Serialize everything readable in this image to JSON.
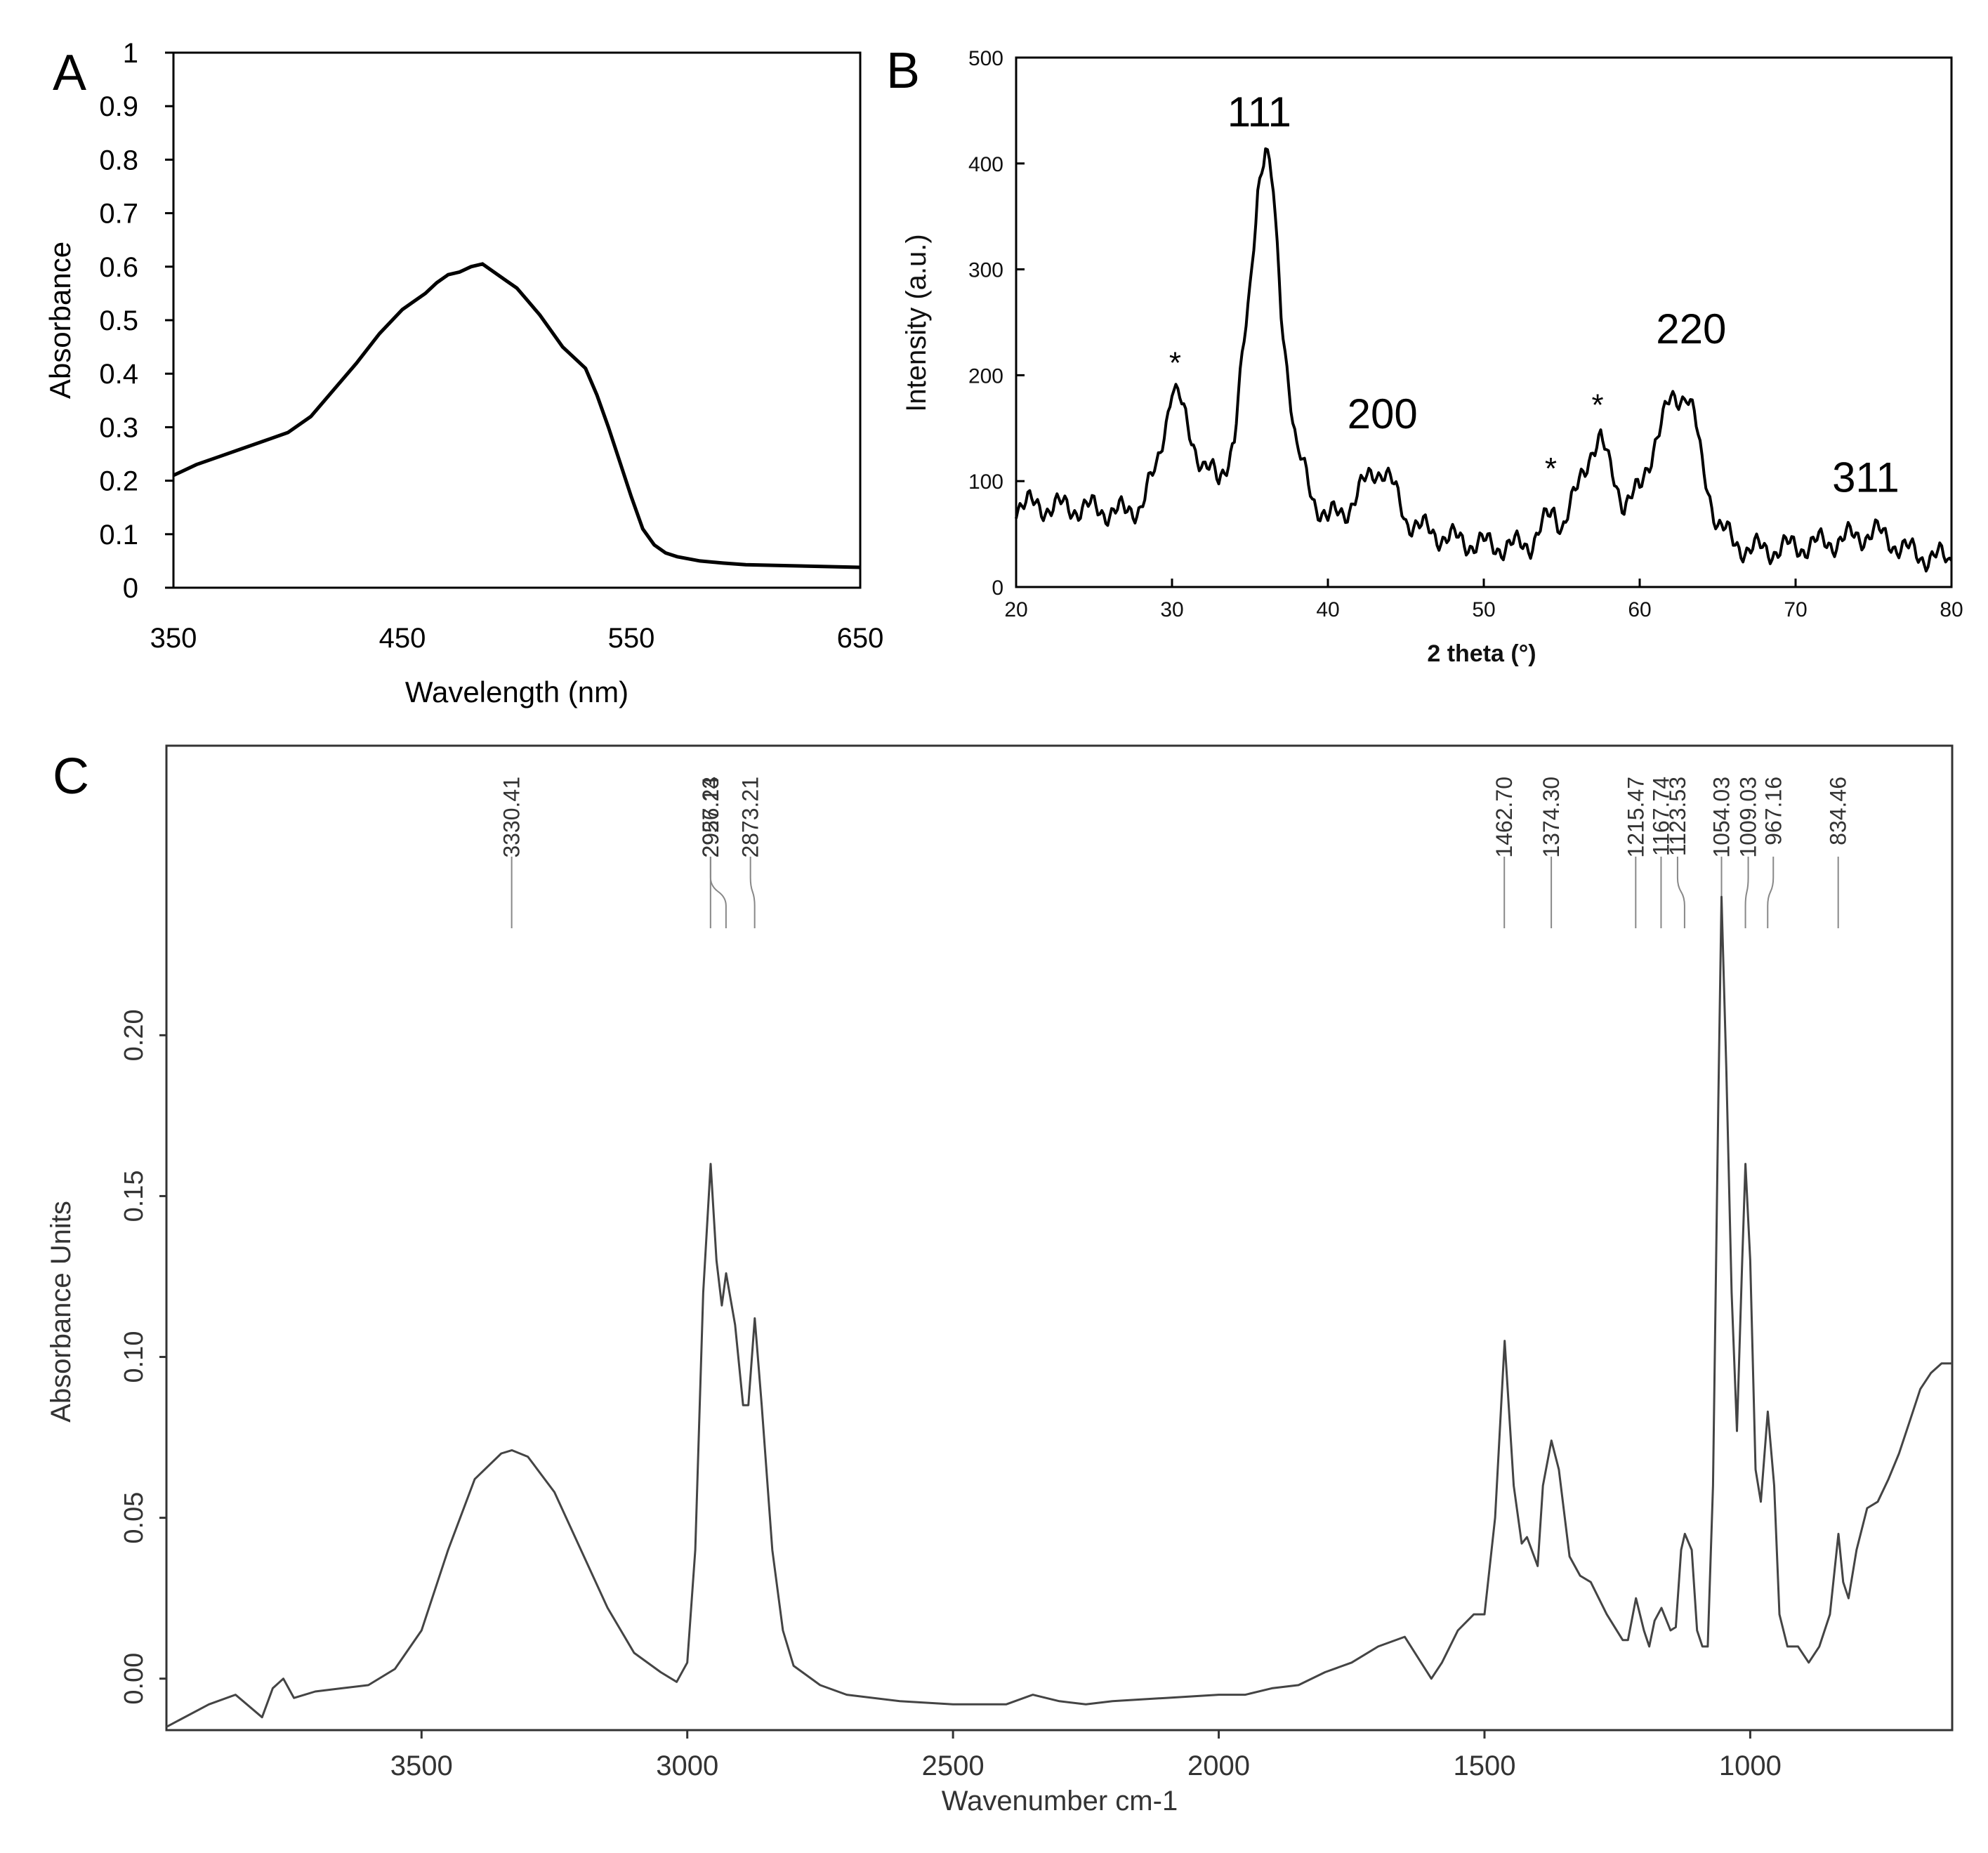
{
  "chart_data": [
    {
      "panel": "A",
      "type": "line",
      "panel_label": "A",
      "xlabel": "Wavelength (nm)",
      "ylabel": "Absorbance",
      "xlim": [
        350,
        650
      ],
      "ylim": [
        0,
        1
      ],
      "xticks": [
        "350",
        "450",
        "550",
        "650"
      ],
      "yticks": [
        "0",
        "0.1",
        "0.2",
        "0.3",
        "0.4",
        "0.5",
        "0.6",
        "0.7",
        "0.8",
        "0.9",
        "1"
      ],
      "x": [
        350,
        360,
        370,
        380,
        390,
        400,
        410,
        420,
        430,
        440,
        450,
        455,
        460,
        465,
        470,
        475,
        480,
        485,
        490,
        495,
        500,
        505,
        510,
        515,
        520,
        525,
        530,
        535,
        540,
        545,
        550,
        555,
        560,
        565,
        570,
        580,
        590,
        600,
        610,
        620,
        630,
        640,
        650
      ],
      "y": [
        0.21,
        0.23,
        0.245,
        0.26,
        0.275,
        0.29,
        0.32,
        0.37,
        0.42,
        0.475,
        0.52,
        0.535,
        0.55,
        0.57,
        0.585,
        0.59,
        0.6,
        0.605,
        0.59,
        0.575,
        0.56,
        0.535,
        0.51,
        0.48,
        0.45,
        0.43,
        0.41,
        0.36,
        0.3,
        0.235,
        0.17,
        0.11,
        0.08,
        0.065,
        0.058,
        0.05,
        0.046,
        0.043,
        0.042,
        0.041,
        0.04,
        0.039,
        0.038
      ]
    },
    {
      "panel": "B",
      "type": "line",
      "panel_label": "B",
      "xlabel": "2 theta (°)",
      "ylabel": "Intensity (a.u.)",
      "xlim": [
        20,
        80
      ],
      "ylim": [
        0,
        500
      ],
      "xticks": [
        "20",
        "30",
        "40",
        "50",
        "60",
        "70",
        "80"
      ],
      "yticks": [
        "0",
        "100",
        "200",
        "300",
        "400",
        "500"
      ],
      "x": [
        20,
        22,
        24,
        26,
        27,
        28,
        29,
        29.5,
        30,
        30.5,
        31,
        32,
        33,
        34,
        35,
        35.5,
        36,
        36.5,
        37,
        38,
        39,
        40,
        41,
        42,
        43,
        43.5,
        44,
        45,
        46,
        48,
        50,
        52,
        53,
        54,
        54.5,
        55,
        56,
        57,
        57.5,
        58,
        59,
        60,
        61,
        62,
        63,
        63.5,
        64,
        65,
        66,
        67,
        68,
        70,
        72,
        74,
        75,
        76,
        77,
        78,
        79,
        80
      ],
      "y": [
        78,
        76,
        75,
        72,
        70,
        78,
        110,
        150,
        190,
        175,
        150,
        115,
        100,
        140,
        280,
        380,
        415,
        370,
        260,
        130,
        85,
        65,
        70,
        90,
        110,
        112,
        100,
        65,
        55,
        45,
        40,
        38,
        42,
        62,
        70,
        60,
        90,
        135,
        140,
        115,
        80,
        90,
        140,
        175,
        185,
        160,
        115,
        60,
        42,
        36,
        35,
        38,
        42,
        48,
        52,
        45,
        35,
        30,
        28,
        25
      ],
      "annotations": [
        {
          "text": "111",
          "x": 35.6,
          "y": 435
        },
        {
          "text": "200",
          "x": 43.5,
          "y": 150
        },
        {
          "text": "220",
          "x": 63.3,
          "y": 230
        },
        {
          "text": "311",
          "x": 74.5,
          "y": 90
        },
        {
          "text": "*",
          "x": 30.2,
          "y": 210
        },
        {
          "text": "*",
          "x": 54.3,
          "y": 110
        },
        {
          "text": "*",
          "x": 57.3,
          "y": 170
        }
      ]
    },
    {
      "panel": "C",
      "type": "line",
      "panel_label": "C",
      "xlabel": "Wavenumber cm-1",
      "ylabel": "Absorbance Units",
      "xlim": [
        3980,
        620
      ],
      "ylim": [
        -0.016,
        0.29
      ],
      "xticks": [
        "3500",
        "3000",
        "2500",
        "2000",
        "1500",
        "1000"
      ],
      "yticks": [
        "0.00",
        "0.05",
        "0.10",
        "0.15",
        "0.20"
      ],
      "x": [
        3980,
        3900,
        3850,
        3800,
        3780,
        3760,
        3740,
        3700,
        3650,
        3600,
        3550,
        3500,
        3450,
        3400,
        3350,
        3330,
        3300,
        3250,
        3200,
        3150,
        3100,
        3050,
        3020,
        3000,
        2985,
        2970,
        2956,
        2945,
        2935,
        2927,
        2910,
        2895,
        2885,
        2873,
        2860,
        2840,
        2820,
        2800,
        2750,
        2700,
        2600,
        2500,
        2400,
        2350,
        2300,
        2250,
        2200,
        2100,
        2000,
        1950,
        1900,
        1850,
        1800,
        1750,
        1700,
        1650,
        1600,
        1580,
        1550,
        1520,
        1500,
        1480,
        1462,
        1445,
        1430,
        1420,
        1400,
        1390,
        1374,
        1360,
        1340,
        1320,
        1300,
        1270,
        1240,
        1230,
        1215,
        1200,
        1190,
        1180,
        1167,
        1150,
        1140,
        1130,
        1123,
        1110,
        1100,
        1090,
        1080,
        1070,
        1060,
        1054,
        1045,
        1035,
        1025,
        1015,
        1009,
        1000,
        990,
        980,
        967,
        955,
        945,
        930,
        910,
        890,
        870,
        850,
        834,
        825,
        815,
        800,
        780,
        760,
        740,
        720,
        700,
        680,
        660,
        640,
        620
      ],
      "y": [
        -0.015,
        -0.008,
        -0.005,
        -0.012,
        -0.003,
        0.0,
        -0.006,
        -0.004,
        -0.003,
        -0.002,
        0.003,
        0.015,
        0.04,
        0.062,
        0.07,
        0.071,
        0.069,
        0.058,
        0.04,
        0.022,
        0.008,
        0.002,
        -0.001,
        0.005,
        0.04,
        0.12,
        0.16,
        0.13,
        0.116,
        0.126,
        0.11,
        0.085,
        0.085,
        0.112,
        0.085,
        0.04,
        0.015,
        0.004,
        -0.002,
        -0.005,
        -0.007,
        -0.008,
        -0.008,
        -0.005,
        -0.007,
        -0.008,
        -0.007,
        -0.006,
        -0.005,
        -0.005,
        -0.003,
        -0.002,
        0.002,
        0.005,
        0.01,
        0.013,
        0.0,
        0.005,
        0.015,
        0.02,
        0.02,
        0.05,
        0.105,
        0.06,
        0.042,
        0.044,
        0.035,
        0.06,
        0.074,
        0.065,
        0.038,
        0.032,
        0.03,
        0.02,
        0.012,
        0.012,
        0.025,
        0.015,
        0.01,
        0.018,
        0.022,
        0.015,
        0.016,
        0.04,
        0.045,
        0.04,
        0.015,
        0.01,
        0.01,
        0.06,
        0.18,
        0.243,
        0.19,
        0.12,
        0.077,
        0.13,
        0.16,
        0.13,
        0.065,
        0.055,
        0.083,
        0.06,
        0.02,
        0.01,
        0.01,
        0.005,
        0.01,
        0.02,
        0.045,
        0.03,
        0.025,
        0.04,
        0.053,
        0.055,
        0.062,
        0.07,
        0.08,
        0.09,
        0.095,
        0.098,
        0.098
      ],
      "peak_labels": [
        "3330.41",
        "2956.24",
        "2927.13",
        "2873.21",
        "1462.70",
        "1374.30",
        "1215.47",
        "1167.74",
        "1123.53",
        "1054.03",
        "1009.03",
        "967.16",
        "834.46"
      ]
    }
  ]
}
